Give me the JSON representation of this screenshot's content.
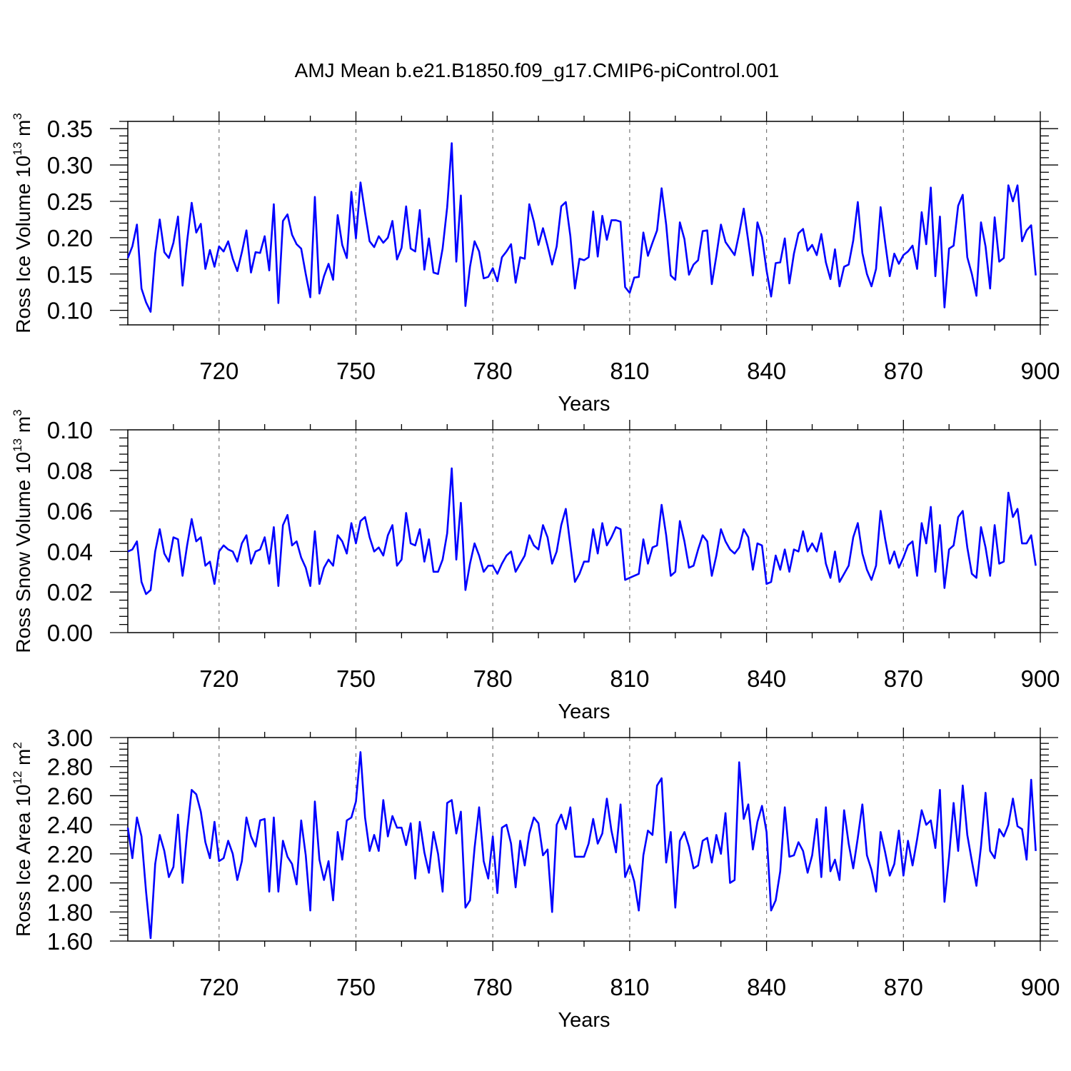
{
  "title": "AMJ Mean b.e21.B1850.f09_g17.CMIP6-piControl.001",
  "colors": {
    "line": "#0000ff",
    "grid": "#777777",
    "axis": "#000000"
  },
  "chart_data": [
    {
      "type": "line",
      "name": "ross-ice-volume",
      "ylabel": "Ross Ice Volume 10",
      "ylabel_exp": "13",
      "ylabel_unit": "m",
      "ylabel_unit_exp": "3",
      "xlabel": "Years",
      "xlim": [
        700,
        900
      ],
      "ylim": [
        0.08,
        0.36
      ],
      "yticks": [
        0.1,
        0.15,
        0.2,
        0.25,
        0.3,
        0.35
      ],
      "ytick_labels": [
        "0.10",
        "0.15",
        "0.20",
        "0.25",
        "0.30",
        "0.35"
      ],
      "xticks": [
        720,
        750,
        780,
        810,
        840,
        870,
        900
      ],
      "xtick_labels": [
        "720",
        "750",
        "780",
        "810",
        "840",
        "870",
        "900"
      ],
      "x_start": 700,
      "values": [
        0.172,
        0.188,
        0.218,
        0.13,
        0.111,
        0.098,
        0.178,
        0.225,
        0.18,
        0.172,
        0.193,
        0.229,
        0.134,
        0.195,
        0.248,
        0.207,
        0.219,
        0.157,
        0.183,
        0.16,
        0.188,
        0.181,
        0.195,
        0.171,
        0.154,
        0.18,
        0.21,
        0.152,
        0.18,
        0.179,
        0.202,
        0.155,
        0.246,
        0.11,
        0.223,
        0.232,
        0.204,
        0.191,
        0.185,
        0.15,
        0.118,
        0.256,
        0.123,
        0.147,
        0.164,
        0.142,
        0.231,
        0.19,
        0.172,
        0.263,
        0.199,
        0.276,
        0.234,
        0.195,
        0.187,
        0.202,
        0.193,
        0.2,
        0.223,
        0.17,
        0.186,
        0.243,
        0.185,
        0.181,
        0.238,
        0.156,
        0.199,
        0.152,
        0.15,
        0.185,
        0.242,
        0.33,
        0.167,
        0.258,
        0.106,
        0.16,
        0.195,
        0.181,
        0.144,
        0.146,
        0.158,
        0.14,
        0.173,
        0.181,
        0.191,
        0.138,
        0.173,
        0.171,
        0.246,
        0.222,
        0.19,
        0.213,
        0.189,
        0.163,
        0.188,
        0.243,
        0.249,
        0.202,
        0.13,
        0.171,
        0.169,
        0.173,
        0.236,
        0.174,
        0.23,
        0.197,
        0.224,
        0.224,
        0.222,
        0.132,
        0.124,
        0.145,
        0.146,
        0.207,
        0.175,
        0.193,
        0.21,
        0.268,
        0.218,
        0.148,
        0.142,
        0.221,
        0.198,
        0.149,
        0.163,
        0.169,
        0.209,
        0.21,
        0.136,
        0.175,
        0.218,
        0.194,
        0.185,
        0.176,
        0.206,
        0.24,
        0.195,
        0.148,
        0.221,
        0.201,
        0.155,
        0.119,
        0.165,
        0.166,
        0.199,
        0.137,
        0.178,
        0.206,
        0.212,
        0.182,
        0.19,
        0.176,
        0.205,
        0.166,
        0.143,
        0.184,
        0.133,
        0.16,
        0.163,
        0.196,
        0.249,
        0.179,
        0.15,
        0.133,
        0.157,
        0.242,
        0.193,
        0.147,
        0.178,
        0.164,
        0.176,
        0.181,
        0.189,
        0.157,
        0.235,
        0.191,
        0.269,
        0.147,
        0.229,
        0.104,
        0.185,
        0.189,
        0.244,
        0.259,
        0.173,
        0.15,
        0.12,
        0.221,
        0.188,
        0.13,
        0.228,
        0.167,
        0.172,
        0.272,
        0.25,
        0.272,
        0.195,
        0.21,
        0.217,
        0.148
      ]
    },
    {
      "type": "line",
      "name": "ross-snow-volume",
      "ylabel": "Ross Snow Volume 10",
      "ylabel_exp": "13",
      "ylabel_unit": "m",
      "ylabel_unit_exp": "3",
      "xlabel": "Years",
      "xlim": [
        700,
        900
      ],
      "ylim": [
        0.0,
        0.1
      ],
      "yticks": [
        0.0,
        0.02,
        0.04,
        0.06,
        0.08,
        0.1
      ],
      "ytick_labels": [
        "0.00",
        "0.02",
        "0.04",
        "0.06",
        "0.08",
        "0.10"
      ],
      "xticks": [
        720,
        750,
        780,
        810,
        840,
        870,
        900
      ],
      "xtick_labels": [
        "720",
        "750",
        "780",
        "810",
        "840",
        "870",
        "900"
      ],
      "x_start": 700,
      "values": [
        0.04,
        0.041,
        0.045,
        0.025,
        0.019,
        0.021,
        0.04,
        0.051,
        0.039,
        0.035,
        0.047,
        0.046,
        0.028,
        0.043,
        0.056,
        0.045,
        0.047,
        0.033,
        0.035,
        0.024,
        0.04,
        0.043,
        0.041,
        0.04,
        0.035,
        0.044,
        0.048,
        0.034,
        0.04,
        0.041,
        0.047,
        0.034,
        0.052,
        0.023,
        0.053,
        0.058,
        0.043,
        0.045,
        0.037,
        0.032,
        0.023,
        0.05,
        0.024,
        0.032,
        0.036,
        0.033,
        0.048,
        0.045,
        0.039,
        0.054,
        0.044,
        0.055,
        0.057,
        0.047,
        0.04,
        0.042,
        0.038,
        0.048,
        0.053,
        0.033,
        0.036,
        0.059,
        0.044,
        0.043,
        0.051,
        0.035,
        0.046,
        0.03,
        0.03,
        0.036,
        0.049,
        0.081,
        0.036,
        0.064,
        0.021,
        0.034,
        0.044,
        0.038,
        0.03,
        0.033,
        0.033,
        0.029,
        0.034,
        0.038,
        0.04,
        0.03,
        0.034,
        0.038,
        0.048,
        0.043,
        0.041,
        0.053,
        0.047,
        0.034,
        0.04,
        0.053,
        0.061,
        0.043,
        0.025,
        0.029,
        0.035,
        0.035,
        0.051,
        0.039,
        0.054,
        0.043,
        0.047,
        0.052,
        0.051,
        0.026,
        0.027,
        0.028,
        0.029,
        0.046,
        0.034,
        0.042,
        0.043,
        0.063,
        0.048,
        0.028,
        0.03,
        0.055,
        0.045,
        0.032,
        0.033,
        0.041,
        0.048,
        0.045,
        0.028,
        0.038,
        0.051,
        0.045,
        0.041,
        0.039,
        0.042,
        0.051,
        0.047,
        0.031,
        0.044,
        0.043,
        0.024,
        0.025,
        0.038,
        0.031,
        0.041,
        0.03,
        0.041,
        0.04,
        0.05,
        0.04,
        0.044,
        0.04,
        0.049,
        0.034,
        0.027,
        0.04,
        0.025,
        0.029,
        0.033,
        0.047,
        0.054,
        0.039,
        0.031,
        0.026,
        0.033,
        0.06,
        0.046,
        0.034,
        0.04,
        0.032,
        0.037,
        0.043,
        0.045,
        0.028,
        0.054,
        0.044,
        0.062,
        0.03,
        0.053,
        0.022,
        0.041,
        0.043,
        0.057,
        0.06,
        0.042,
        0.029,
        0.027,
        0.052,
        0.042,
        0.028,
        0.053,
        0.034,
        0.035,
        0.069,
        0.057,
        0.061,
        0.044,
        0.044,
        0.048,
        0.033
      ]
    },
    {
      "type": "line",
      "name": "ross-ice-area",
      "ylabel": "Ross Ice Area 10",
      "ylabel_exp": "12",
      "ylabel_unit": "m",
      "ylabel_unit_exp": "2",
      "xlabel": "Years",
      "xlim": [
        700,
        900
      ],
      "ylim": [
        1.6,
        3.0
      ],
      "yticks": [
        1.6,
        1.8,
        2.0,
        2.2,
        2.4,
        2.6,
        2.8,
        3.0
      ],
      "ytick_labels": [
        "1.60",
        "1.80",
        "2.00",
        "2.20",
        "2.40",
        "2.60",
        "2.80",
        "3.00"
      ],
      "xticks": [
        720,
        750,
        780,
        810,
        840,
        870,
        900
      ],
      "xtick_labels": [
        "720",
        "750",
        "780",
        "810",
        "840",
        "870",
        "900"
      ],
      "x_start": 700,
      "values": [
        2.38,
        2.17,
        2.45,
        2.32,
        1.94,
        1.62,
        2.13,
        2.33,
        2.22,
        2.04,
        2.11,
        2.47,
        2.0,
        2.35,
        2.64,
        2.61,
        2.49,
        2.28,
        2.17,
        2.42,
        2.15,
        2.17,
        2.29,
        2.2,
        2.02,
        2.15,
        2.45,
        2.32,
        2.25,
        2.43,
        2.44,
        1.94,
        2.45,
        1.94,
        2.29,
        2.18,
        2.13,
        1.99,
        2.43,
        2.19,
        1.81,
        2.56,
        2.16,
        2.02,
        2.15,
        1.88,
        2.35,
        2.16,
        2.43,
        2.45,
        2.56,
        2.9,
        2.45,
        2.22,
        2.33,
        2.22,
        2.57,
        2.32,
        2.46,
        2.38,
        2.38,
        2.26,
        2.41,
        2.03,
        2.42,
        2.21,
        2.07,
        2.35,
        2.2,
        1.94,
        2.55,
        2.57,
        2.34,
        2.49,
        1.83,
        1.88,
        2.24,
        2.52,
        2.15,
        2.03,
        2.32,
        1.93,
        2.38,
        2.4,
        2.27,
        1.97,
        2.29,
        2.12,
        2.34,
        2.45,
        2.41,
        2.19,
        2.23,
        1.8,
        2.4,
        2.47,
        2.37,
        2.52,
        2.18,
        2.18,
        2.18,
        2.27,
        2.44,
        2.27,
        2.34,
        2.58,
        2.36,
        2.21,
        2.54,
        2.04,
        2.12,
        2.01,
        1.81,
        2.19,
        2.36,
        2.33,
        2.67,
        2.72,
        2.14,
        2.35,
        1.83,
        2.29,
        2.35,
        2.25,
        2.1,
        2.12,
        2.29,
        2.31,
        2.14,
        2.33,
        2.2,
        2.48,
        2.0,
        2.02,
        2.83,
        2.44,
        2.54,
        2.23,
        2.42,
        2.53,
        2.35,
        1.81,
        1.88,
        2.08,
        2.52,
        2.18,
        2.19,
        2.28,
        2.22,
        2.07,
        2.19,
        2.44,
        2.04,
        2.52,
        2.08,
        2.16,
        2.02,
        2.5,
        2.27,
        2.1,
        2.31,
        2.54,
        2.19,
        2.09,
        1.94,
        2.35,
        2.21,
        2.05,
        2.13,
        2.36,
        2.05,
        2.29,
        2.12,
        2.3,
        2.5,
        2.4,
        2.43,
        2.24,
        2.64,
        1.87,
        2.18,
        2.55,
        2.22,
        2.67,
        2.33,
        2.15,
        1.98,
        2.25,
        2.62,
        2.22,
        2.17,
        2.37,
        2.32,
        2.4,
        2.58,
        2.39,
        2.37,
        2.16,
        2.71,
        2.22
      ]
    }
  ]
}
